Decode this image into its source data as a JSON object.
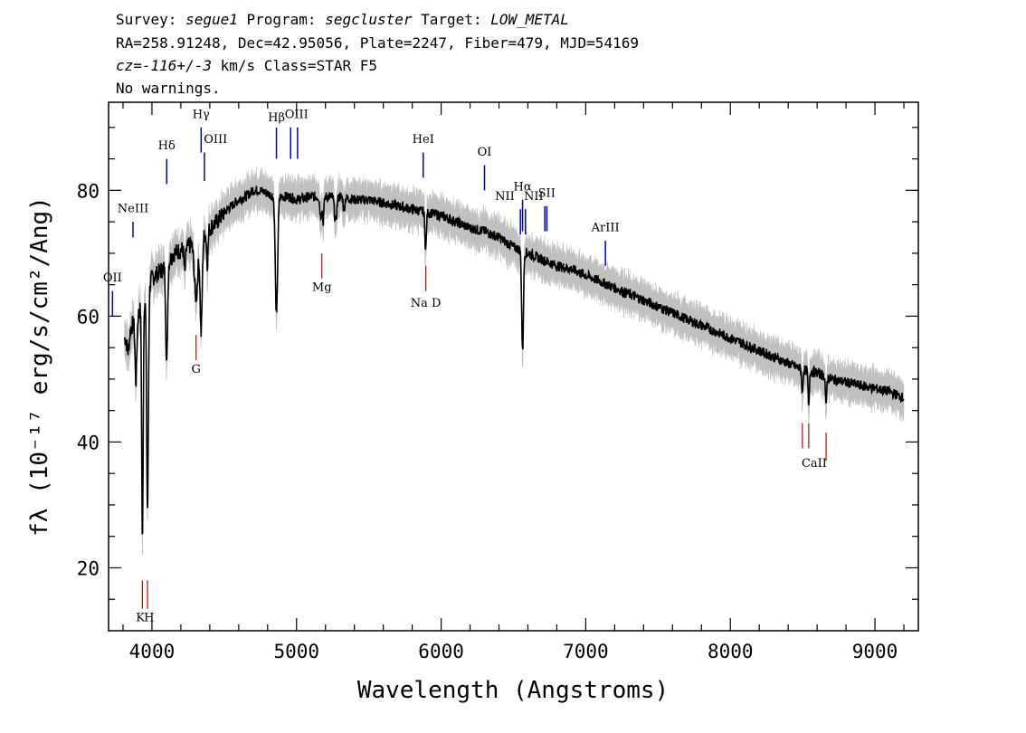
{
  "header": {
    "line1": {
      "survey_label": "Survey: ",
      "survey": "segue1",
      "program_label": " Program: ",
      "program": "segcluster",
      "target_label": " Target: ",
      "target": "LOW_METAL"
    },
    "line2": "RA=258.91248, Dec=42.95056, Plate=2247, Fiber=479, MJD=54169",
    "line3": {
      "cz": "cz=-116+/-3",
      "rest": " km/s Class=STAR F5"
    },
    "line4": "No warnings."
  },
  "chart_data": {
    "type": "line",
    "xlabel": "Wavelength (Angstroms)",
    "ylabel": "fλ (10⁻¹⁷ erg/s/cm²/Ang)",
    "xlim": [
      3700,
      9300
    ],
    "ylim": [
      10,
      94
    ],
    "xticks": [
      4000,
      5000,
      6000,
      7000,
      8000,
      9000
    ],
    "yticks": [
      20,
      40,
      60,
      80
    ],
    "continuum": [
      [
        3800,
        56
      ],
      [
        3850,
        58
      ],
      [
        3900,
        60
      ],
      [
        3950,
        63
      ],
      [
        4000,
        66
      ],
      [
        4050,
        67
      ],
      [
        4100,
        68
      ],
      [
        4150,
        70
      ],
      [
        4200,
        70.5
      ],
      [
        4250,
        71
      ],
      [
        4300,
        72
      ],
      [
        4350,
        72.5
      ],
      [
        4400,
        74
      ],
      [
        4450,
        75
      ],
      [
        4500,
        76.5
      ],
      [
        4550,
        77.5
      ],
      [
        4600,
        78.5
      ],
      [
        4650,
        79
      ],
      [
        4700,
        80
      ],
      [
        4750,
        80
      ],
      [
        4800,
        79.5
      ],
      [
        4850,
        79
      ],
      [
        4900,
        79
      ],
      [
        4950,
        79
      ],
      [
        5000,
        78.5
      ],
      [
        5100,
        79
      ],
      [
        5200,
        79
      ],
      [
        5300,
        79
      ],
      [
        5400,
        78.5
      ],
      [
        5500,
        78.5
      ],
      [
        5600,
        78
      ],
      [
        5700,
        77.5
      ],
      [
        5800,
        77
      ],
      [
        5900,
        76.5
      ],
      [
        6000,
        76
      ],
      [
        6100,
        75
      ],
      [
        6200,
        74
      ],
      [
        6300,
        73.5
      ],
      [
        6400,
        72.5
      ],
      [
        6500,
        71
      ],
      [
        6600,
        70
      ],
      [
        6700,
        69
      ],
      [
        6800,
        68
      ],
      [
        6900,
        67.5
      ],
      [
        7000,
        66.5
      ],
      [
        7200,
        64.5
      ],
      [
        7400,
        62.5
      ],
      [
        7600,
        60.5
      ],
      [
        7800,
        58.5
      ],
      [
        8000,
        56.5
      ],
      [
        8200,
        54.5
      ],
      [
        8400,
        52.5
      ],
      [
        8500,
        51.5
      ],
      [
        8600,
        51
      ],
      [
        8700,
        50
      ],
      [
        8800,
        49.5
      ],
      [
        8900,
        49
      ],
      [
        9000,
        48.5
      ],
      [
        9100,
        48
      ],
      [
        9200,
        47
      ]
    ],
    "absorption": [
      [
        3835,
        3,
        8
      ],
      [
        3889,
        10,
        6
      ],
      [
        3934,
        38,
        5
      ],
      [
        3969,
        35,
        6
      ],
      [
        4102,
        16,
        6
      ],
      [
        4227,
        4,
        5
      ],
      [
        4305,
        9,
        12
      ],
      [
        4340,
        15,
        7
      ],
      [
        4383,
        5,
        5
      ],
      [
        4861,
        19,
        8
      ],
      [
        5167,
        3,
        6
      ],
      [
        5184,
        4,
        5
      ],
      [
        5270,
        4,
        8
      ],
      [
        5328,
        2,
        5
      ],
      [
        5893,
        6,
        5
      ],
      [
        6563,
        16,
        6
      ],
      [
        8498,
        4,
        4
      ],
      [
        8542,
        6,
        4
      ],
      [
        8662,
        5,
        4
      ]
    ],
    "emission_lines": [
      {
        "label": "OII",
        "x": 3727,
        "y1": 60,
        "y2": 64
      },
      {
        "label": "NeIII",
        "x": 3869,
        "y1": 72.5,
        "y2": 75
      },
      {
        "label": "Hδ",
        "x": 4102,
        "y1": 81,
        "y2": 85
      },
      {
        "label": "Hγ",
        "x": 4340,
        "y1": 86,
        "y2": 90
      },
      {
        "label": "OIII",
        "x": 4363,
        "y1": 81.5,
        "y2": 86
      },
      {
        "label": "Hβ",
        "x": 4861,
        "y1": 85,
        "y2": 90
      },
      {
        "label": "OIII",
        "x": 4959,
        "y1": 85,
        "y2": 90
      },
      {
        "label": "OIII",
        "x": 5007,
        "y1": 85,
        "y2": 90
      },
      {
        "label": "HeI",
        "x": 5876,
        "y1": 82,
        "y2": 86
      },
      {
        "label": "OI",
        "x": 6300,
        "y1": 80,
        "y2": 84
      },
      {
        "label": "NII",
        "x": 6548,
        "y1": 73,
        "y2": 77
      },
      {
        "label": "Hα",
        "x": 6563,
        "y1": 73.5,
        "y2": 78.5
      },
      {
        "label": "NII",
        "x": 6583,
        "y1": 73,
        "y2": 77
      },
      {
        "label": "SII",
        "x": 6717,
        "y1": 73.5,
        "y2": 77.5
      },
      {
        "label": "SII",
        "x": 6731,
        "y1": 73.5,
        "y2": 77.5
      },
      {
        "label": "ArIII",
        "x": 7136,
        "y1": 68,
        "y2": 72
      }
    ],
    "absorption_lines": [
      {
        "label": "K",
        "x": 3934,
        "y1": 13.5,
        "y2": 18
      },
      {
        "label": "H",
        "x": 3969,
        "y1": 13.5,
        "y2": 18
      },
      {
        "label": "G",
        "x": 4305,
        "y1": 53,
        "y2": 57
      },
      {
        "label": "Mg",
        "x": 5175,
        "y1": 66,
        "y2": 70
      },
      {
        "label": "Na D",
        "x": 5894,
        "y1": 64,
        "y2": 68
      },
      {
        "label": "CaII",
        "x": 8498,
        "y1": 39,
        "y2": 43
      },
      {
        "label": "CaII",
        "x": 8542,
        "y1": 39,
        "y2": 43
      },
      {
        "label": "CaII",
        "x": 8662,
        "y1": 37,
        "y2": 41.5
      }
    ],
    "line_labels": [
      {
        "text": "OII",
        "x": 3727,
        "y": 65.5
      },
      {
        "text": "NeIII",
        "x": 3869,
        "y": 76.5
      },
      {
        "text": "Hδ",
        "x": 4102,
        "y": 86.5
      },
      {
        "text": "Hγ",
        "x": 4340,
        "y": 91.5
      },
      {
        "text": "OIII",
        "x": 4440,
        "y": 87.5
      },
      {
        "text": "Hβ",
        "x": 4861,
        "y": 91
      },
      {
        "text": "OIII",
        "x": 5000,
        "y": 91.5
      },
      {
        "text": "HeI",
        "x": 5876,
        "y": 87.5
      },
      {
        "text": "OI",
        "x": 6300,
        "y": 85.5
      },
      {
        "text": "NII",
        "x": 6440,
        "y": 78.5
      },
      {
        "text": "Hα",
        "x": 6563,
        "y": 80
      },
      {
        "text": "SII",
        "x": 6730,
        "y": 79
      },
      {
        "text": "NII",
        "x": 6640,
        "y": 78.5
      },
      {
        "text": "ArIII",
        "x": 7136,
        "y": 73.5
      },
      {
        "text": "Mg",
        "x": 5175,
        "y": 64
      },
      {
        "text": "Na D",
        "x": 5894,
        "y": 61.5
      },
      {
        "text": "G",
        "x": 4305,
        "y": 51
      },
      {
        "text": "K",
        "x": 3920,
        "y": 11.5
      },
      {
        "text": "H",
        "x": 3980,
        "y": 11.5
      },
      {
        "text": "CaII",
        "x": 8580,
        "y": 36
      }
    ],
    "colors": {
      "spectrum": "#000000",
      "error_band": "#c0c0c0",
      "emission": "#0000cc",
      "absorption": "#cc0000",
      "axes": "#000000"
    },
    "grid": false
  }
}
